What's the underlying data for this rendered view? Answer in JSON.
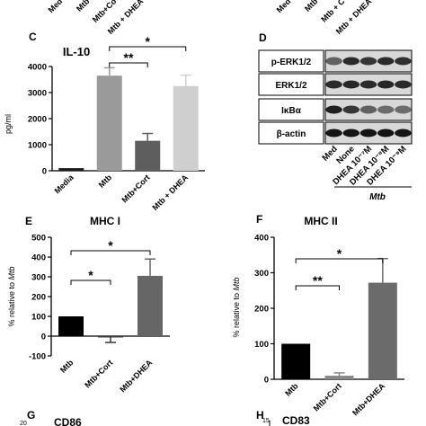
{
  "top_labels": {
    "left": [
      "Med",
      "Mtb",
      "Mtb+Co",
      "Mtb + DHEA"
    ],
    "right": [
      "Med",
      "Mtb",
      "Mtb + C",
      "Mtb + DHEA"
    ]
  },
  "panels": {
    "C": "C",
    "D": "D",
    "E": "E",
    "F": "F",
    "G": "G",
    "H": "H"
  },
  "blot": {
    "rows": [
      "p-ERK1/2",
      "ERK1/2",
      "IκBα",
      "β-actin"
    ],
    "lanes": [
      "Med",
      "None",
      "DHEA 10⁻⁷M",
      "DHEA 10⁻⁸M",
      "DHEA 10⁻⁹M"
    ],
    "group_label": "Mtb"
  },
  "bottom": {
    "G_title": "CD86",
    "G_tick": "20",
    "H_title": "CD83",
    "H_tick": "15"
  },
  "chart_data": [
    {
      "id": "C",
      "type": "bar",
      "title": "IL-10",
      "ylabel": "pg/ml",
      "xlabel": "",
      "categories": [
        "Media",
        "Mtb",
        "Mtb+Cort",
        "Mtb + DHEA"
      ],
      "values": [
        100,
        3650,
        1150,
        3250
      ],
      "errors": [
        0,
        300,
        280,
        420
      ],
      "colors": [
        "#1a1a1a",
        "#9a9a9a",
        "#5e5e5e",
        "#cfcfcf"
      ],
      "ylim": [
        0,
        4000
      ],
      "yticks": [
        "0",
        "1000",
        "2000",
        "3000",
        "4000"
      ],
      "significance": [
        {
          "from": 1,
          "to": 2,
          "label": "**"
        },
        {
          "from": 1,
          "to": 3,
          "label": "*"
        }
      ]
    },
    {
      "id": "E",
      "type": "bar",
      "title": "MHC I",
      "ylabel": "% relative to Mtb",
      "xlabel": "",
      "categories": [
        "Mtb",
        "Mtb+Cort",
        "Mtb+DHEA"
      ],
      "values": [
        100,
        -2,
        305
      ],
      "errors": [
        0,
        30,
        85
      ],
      "colors": [
        "#000000",
        "#3a3a3a",
        "#666666"
      ],
      "ylim": [
        -100,
        500
      ],
      "yticks": [
        "-100",
        "0",
        "100",
        "200",
        "300",
        "400",
        "500"
      ],
      "significance": [
        {
          "from": 0,
          "to": 1,
          "label": "*"
        },
        {
          "from": 0,
          "to": 2,
          "label": "*"
        }
      ]
    },
    {
      "id": "F",
      "type": "bar",
      "title": "MHC II",
      "ylabel": "% relative to Mtb",
      "xlabel": "",
      "categories": [
        "Mtb",
        "Mtb+Cort",
        "Mtb+DHEA"
      ],
      "values": [
        100,
        10,
        272
      ],
      "errors": [
        0,
        8,
        68
      ],
      "colors": [
        "#000000",
        "#888888",
        "#6b6b6b"
      ],
      "ylim": [
        0,
        400
      ],
      "yticks": [
        "0",
        "100",
        "200",
        "300",
        "400"
      ],
      "significance": [
        {
          "from": 0,
          "to": 1,
          "label": "**"
        },
        {
          "from": 0,
          "to": 2,
          "label": "*"
        }
      ]
    }
  ]
}
